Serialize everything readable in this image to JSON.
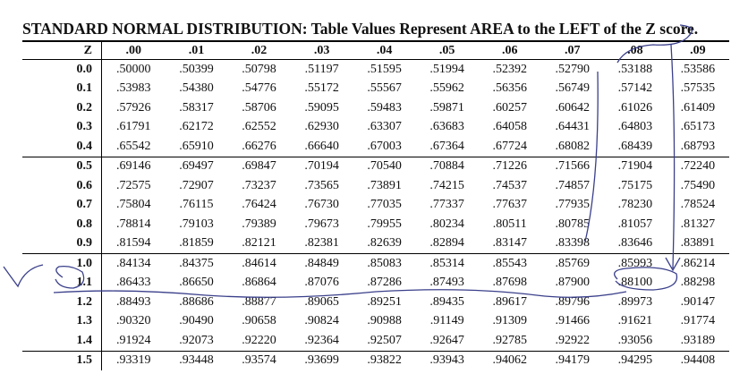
{
  "title": "STANDARD NORMAL DISTRIBUTION: Table Values Represent AREA to the LEFT of the Z score.",
  "table": {
    "header": [
      "Z",
      ".00",
      ".01",
      ".02",
      ".03",
      ".04",
      ".05",
      ".06",
      ".07",
      ".08",
      ".09"
    ],
    "rows": [
      [
        "0.0",
        ".50000",
        ".50399",
        ".50798",
        ".51197",
        ".51595",
        ".51994",
        ".52392",
        ".52790",
        ".53188",
        ".53586"
      ],
      [
        "0.1",
        ".53983",
        ".54380",
        ".54776",
        ".55172",
        ".55567",
        ".55962",
        ".56356",
        ".56749",
        ".57142",
        ".57535"
      ],
      [
        "0.2",
        ".57926",
        ".58317",
        ".58706",
        ".59095",
        ".59483",
        ".59871",
        ".60257",
        ".60642",
        ".61026",
        ".61409"
      ],
      [
        "0.3",
        ".61791",
        ".62172",
        ".62552",
        ".62930",
        ".63307",
        ".63683",
        ".64058",
        ".64431",
        ".64803",
        ".65173"
      ],
      [
        "0.4",
        ".65542",
        ".65910",
        ".66276",
        ".66640",
        ".67003",
        ".67364",
        ".67724",
        ".68082",
        ".68439",
        ".68793"
      ],
      [
        "0.5",
        ".69146",
        ".69497",
        ".69847",
        ".70194",
        ".70540",
        ".70884",
        ".71226",
        ".71566",
        ".71904",
        ".72240"
      ],
      [
        "0.6",
        ".72575",
        ".72907",
        ".73237",
        ".73565",
        ".73891",
        ".74215",
        ".74537",
        ".74857",
        ".75175",
        ".75490"
      ],
      [
        "0.7",
        ".75804",
        ".76115",
        ".76424",
        ".76730",
        ".77035",
        ".77337",
        ".77637",
        ".77935",
        ".78230",
        ".78524"
      ],
      [
        "0.8",
        ".78814",
        ".79103",
        ".79389",
        ".79673",
        ".79955",
        ".80234",
        ".80511",
        ".80785",
        ".81057",
        ".81327"
      ],
      [
        "0.9",
        ".81594",
        ".81859",
        ".82121",
        ".82381",
        ".82639",
        ".82894",
        ".83147",
        ".83398",
        ".83646",
        ".83891"
      ],
      [
        "1.0",
        ".84134",
        ".84375",
        ".84614",
        ".84849",
        ".85083",
        ".85314",
        ".85543",
        ".85769",
        ".85993",
        ".86214"
      ],
      [
        "1.1",
        ".86433",
        ".86650",
        ".86864",
        ".87076",
        ".87286",
        ".87493",
        ".87698",
        ".87900",
        ".88100",
        ".88298"
      ],
      [
        "1.2",
        ".88493",
        ".88686",
        ".88877",
        ".89065",
        ".89251",
        ".89435",
        ".89617",
        ".89796",
        ".89973",
        ".90147"
      ],
      [
        "1.3",
        ".90320",
        ".90490",
        ".90658",
        ".90824",
        ".90988",
        ".91149",
        ".91309",
        ".91466",
        ".91621",
        ".91774"
      ],
      [
        "1.4",
        ".91924",
        ".92073",
        ".92220",
        ".92364",
        ".92507",
        ".92647",
        ".92785",
        ".92922",
        ".93056",
        ".93189"
      ],
      [
        "1.5",
        ".93319",
        ".93448",
        ".93574",
        ".93699",
        ".93822",
        ".93943",
        ".94062",
        ".94179",
        ".94295",
        ".94408"
      ]
    ]
  }
}
